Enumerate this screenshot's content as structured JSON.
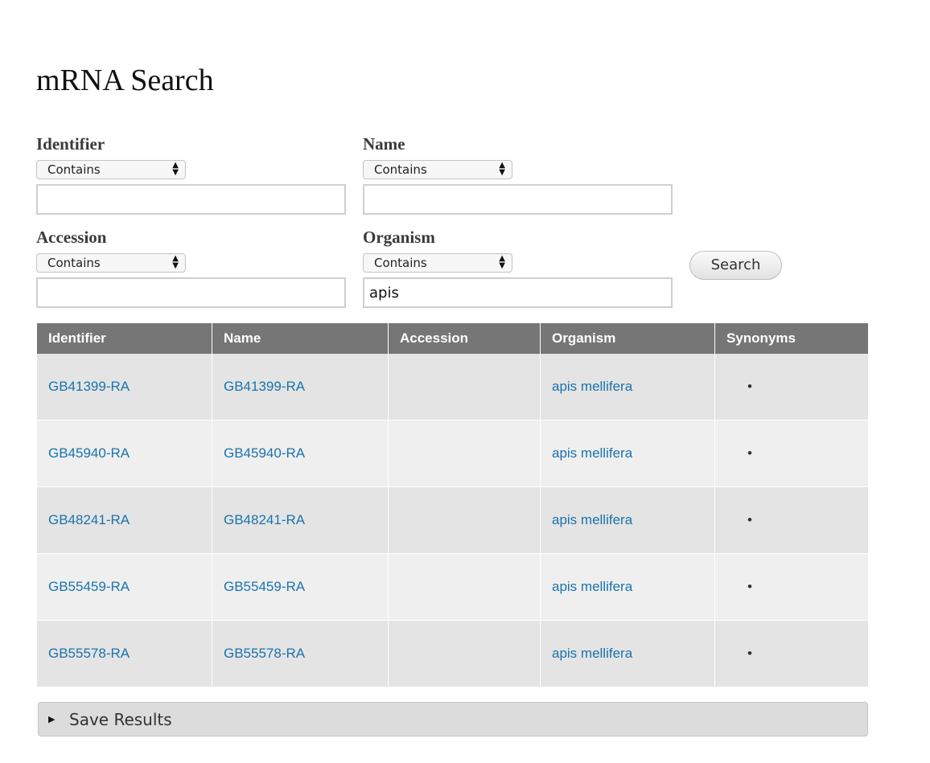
{
  "page_title": "mRNA Search",
  "filters": [
    {
      "label": "Identifier",
      "operator": "Contains",
      "value": ""
    },
    {
      "label": "Name",
      "operator": "Contains",
      "value": ""
    },
    {
      "label": "Accession",
      "operator": "Contains",
      "value": ""
    },
    {
      "label": "Organism",
      "operator": "Contains",
      "value": "apis"
    }
  ],
  "search_label": "Search",
  "table": {
    "headers": [
      "Identifier",
      "Name",
      "Accession",
      "Organism",
      "Synonyms"
    ],
    "rows": [
      {
        "identifier": "GB41399-RA",
        "name": "GB41399-RA",
        "accession": "",
        "organism": "apis mellifera",
        "synonyms": "•"
      },
      {
        "identifier": "GB45940-RA",
        "name": "GB45940-RA",
        "accession": "",
        "organism": "apis mellifera",
        "synonyms": "•"
      },
      {
        "identifier": "GB48241-RA",
        "name": "GB48241-RA",
        "accession": "",
        "organism": "apis mellifera",
        "synonyms": "•"
      },
      {
        "identifier": "GB55459-RA",
        "name": "GB55459-RA",
        "accession": "",
        "organism": "apis mellifera",
        "synonyms": "•"
      },
      {
        "identifier": "GB55578-RA",
        "name": "GB55578-RA",
        "accession": "",
        "organism": "apis mellifera",
        "synonyms": "•"
      }
    ]
  },
  "save_results_label": "Save Results",
  "colors": {
    "header_bg": "#767676",
    "link": "#1a73ad",
    "row_odd": "#e4e4e4",
    "row_even": "#efefef"
  }
}
